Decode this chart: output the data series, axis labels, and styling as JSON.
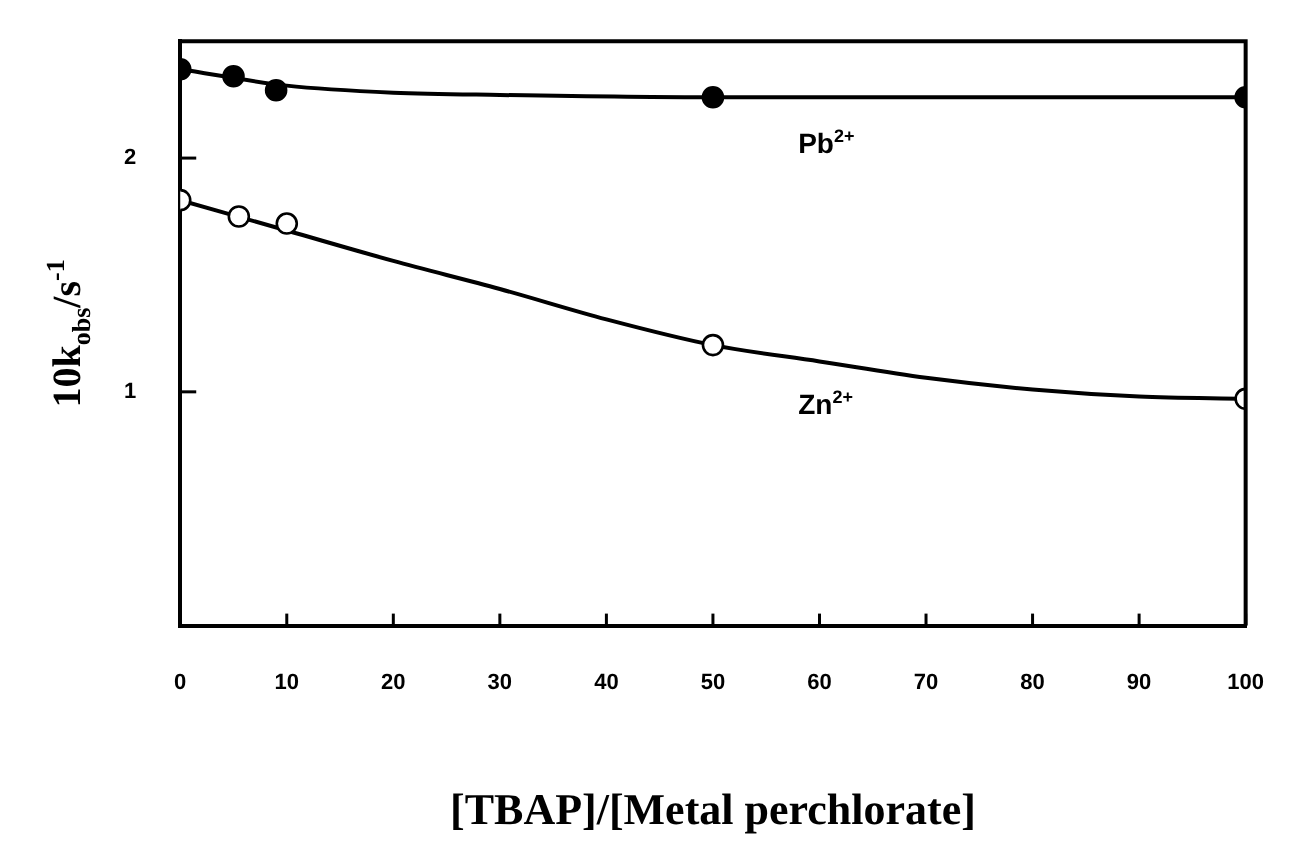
{
  "chart_data": {
    "type": "scatter",
    "xlabel": "[TBAP]/[Metal perchlorate]",
    "ylabel": "10k$_{obs}$/s$^{-1}$",
    "xlim": [
      0,
      100
    ],
    "xticks": [
      0,
      10,
      20,
      30,
      40,
      50,
      60,
      70,
      80,
      90,
      100
    ],
    "ylim": [
      0,
      2.5
    ],
    "yticks": [
      1,
      2
    ],
    "grid": false,
    "legend": false,
    "marker": "circle",
    "series": [
      {
        "type": "scatter",
        "color": "#000000",
        "x": [
          0,
          5,
          9,
          50,
          100
        ],
        "values": [
          2.38,
          2.35,
          2.29,
          2.26,
          2.26
        ]
      },
      {
        "type": "scatter",
        "color": "#ffffff",
        "x": [
          0,
          5.5,
          10,
          50,
          100
        ],
        "values": [
          1.82,
          1.75,
          1.72,
          1.2,
          0.97
        ]
      },
      {
        "type": "line",
        "name": "Pb$^{2+}$",
        "color": "#000000",
        "marker": "none",
        "x": [
          0,
          10,
          20,
          30,
          50,
          100
        ],
        "values": [
          2.38,
          2.31,
          2.28,
          2.27,
          2.26,
          2.26
        ]
      },
      {
        "type": "line",
        "name": "Zn$^{2+}$",
        "color": "#000000",
        "marker": "none",
        "x": [
          0,
          10,
          20,
          30,
          40,
          50,
          60,
          70,
          80,
          90,
          100
        ],
        "values": [
          1.82,
          1.69,
          1.56,
          1.44,
          1.31,
          1.2,
          1.13,
          1.06,
          1.01,
          0.98,
          0.97
        ]
      }
    ]
  }
}
